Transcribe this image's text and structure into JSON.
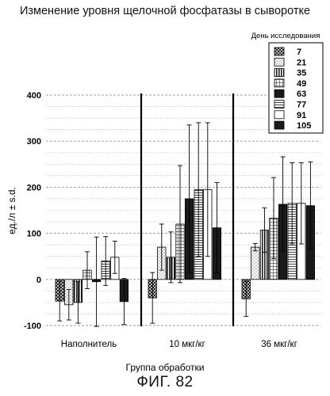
{
  "figure_label": "ФИГ. 82",
  "chart_data": {
    "type": "bar",
    "title": "Изменение уровня щелочной фосфатазы в сыворотке",
    "xlabel": "Группа обработки",
    "ylabel": "ед./л ± s.d.",
    "ylim": [
      -100,
      400
    ],
    "yticks": [
      -100,
      0,
      100,
      200,
      300,
      400
    ],
    "categories": [
      "Наполнитель",
      "10 мкг/кг",
      "36 мкг/кг"
    ],
    "legend_title": "День исследования",
    "legend_position": "top-right",
    "grid": "horizontal dashed",
    "series": [
      {
        "name": "7",
        "values": [
          -47,
          -40,
          -42
        ],
        "errors": [
          43,
          55,
          38
        ],
        "pattern": "dark-checker"
      },
      {
        "name": "21",
        "values": [
          -55,
          70,
          70
        ],
        "errors": [
          33,
          50,
          8
        ],
        "pattern": "light-dots"
      },
      {
        "name": "35",
        "values": [
          -50,
          48,
          107
        ],
        "errors": [
          45,
          55,
          48
        ],
        "pattern": "vertical-stripes"
      },
      {
        "name": "49",
        "values": [
          20,
          120,
          133
        ],
        "errors": [
          40,
          127,
          88
        ],
        "pattern": "grid"
      },
      {
        "name": "63",
        "values": [
          -5,
          175,
          163
        ],
        "errors": [
          97,
          160,
          103
        ],
        "pattern": "black"
      },
      {
        "name": "77",
        "values": [
          40,
          195,
          165
        ],
        "errors": [
          53,
          145,
          88
        ],
        "pattern": "horizontal-stripes"
      },
      {
        "name": "91",
        "values": [
          48,
          195,
          165
        ],
        "errors": [
          35,
          145,
          88
        ],
        "pattern": "white"
      },
      {
        "name": "105",
        "values": [
          -48,
          112,
          160
        ],
        "errors": [
          50,
          98,
          95
        ],
        "pattern": "black"
      }
    ]
  },
  "colors": {
    "bar_outline": "#000000",
    "grid": "#9a9a9a",
    "dark_fill": "#1a1a1a"
  }
}
